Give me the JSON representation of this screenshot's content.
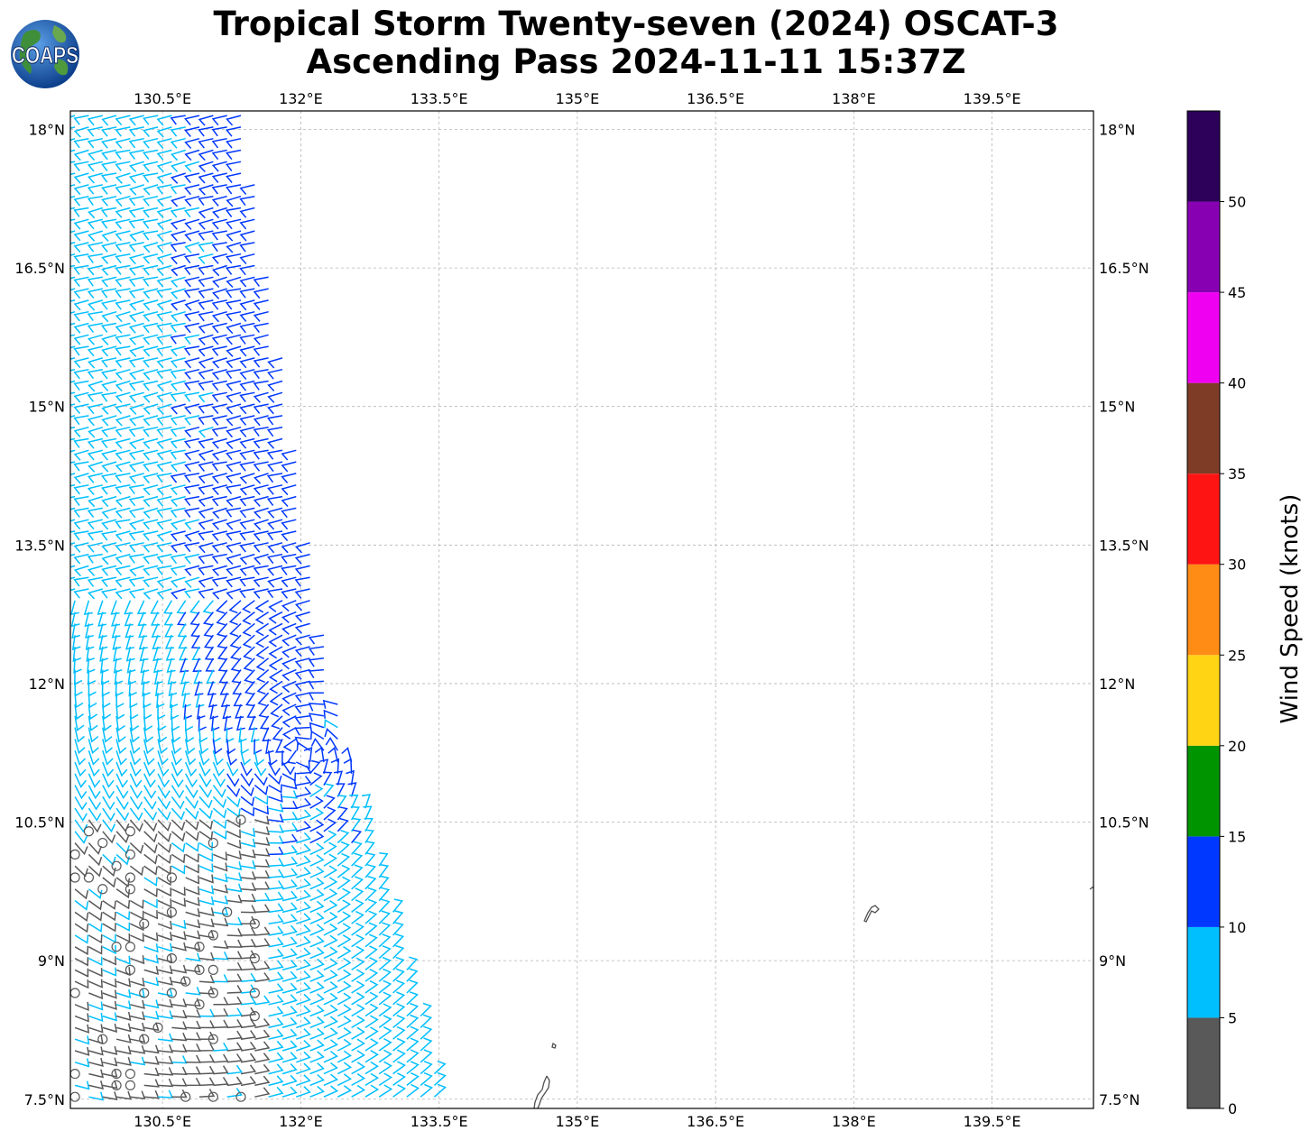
{
  "title": {
    "line1": "Tropical Storm Twenty-seven (2024) OSCAT-3",
    "line2": "Ascending Pass 2024-11-11 15:37Z"
  },
  "logo": {
    "text": "COAPS",
    "icon": "coaps-globe-logo-icon"
  },
  "map": {
    "lon_range": [
      129.5,
      140.6
    ],
    "lat_range": [
      7.4,
      18.2
    ],
    "lon_ticks": [
      {
        "value": 130.5,
        "label": "130.5°E"
      },
      {
        "value": 132,
        "label": "132°E"
      },
      {
        "value": 133.5,
        "label": "133.5°E"
      },
      {
        "value": 135,
        "label": "135°E"
      },
      {
        "value": 136.5,
        "label": "136.5°E"
      },
      {
        "value": 138,
        "label": "138°E"
      },
      {
        "value": 139.5,
        "label": "139.5°E"
      }
    ],
    "lat_ticks": [
      {
        "value": 18,
        "label": "18°N"
      },
      {
        "value": 16.5,
        "label": "16.5°N"
      },
      {
        "value": 15,
        "label": "15°N"
      },
      {
        "value": 13.5,
        "label": "13.5°N"
      },
      {
        "value": 12,
        "label": "12°N"
      },
      {
        "value": 10.5,
        "label": "10.5°N"
      },
      {
        "value": 9,
        "label": "9°N"
      },
      {
        "value": 7.5,
        "label": "7.5°N"
      }
    ],
    "grid": true,
    "swath_edge": [
      [
        129.5,
        18.2
      ],
      [
        131.44,
        18.2
      ],
      [
        132.4,
        12.0
      ],
      [
        133.2,
        9.0
      ],
      [
        133.62,
        7.4
      ],
      [
        129.5,
        7.4
      ]
    ],
    "storm_center": [
      132.0,
      11.2
    ],
    "colors": {
      "grid": "#b4b4b4",
      "coast": "#505050"
    }
  },
  "colorbar": {
    "label": "Wind Speed (knots)",
    "min": 0,
    "max": 55,
    "ticks": [
      {
        "value": 0,
        "label": "0"
      },
      {
        "value": 5,
        "label": "5"
      },
      {
        "value": 10,
        "label": "10"
      },
      {
        "value": 15,
        "label": "15"
      },
      {
        "value": 20,
        "label": "20"
      },
      {
        "value": 25,
        "label": "25"
      },
      {
        "value": 30,
        "label": "30"
      },
      {
        "value": 35,
        "label": "35"
      },
      {
        "value": 40,
        "label": "40"
      },
      {
        "value": 45,
        "label": "45"
      },
      {
        "value": 50,
        "label": "50"
      }
    ],
    "bins": [
      {
        "from": 0,
        "to": 5,
        "color": "#595959"
      },
      {
        "from": 5,
        "to": 10,
        "color": "#00bfff"
      },
      {
        "from": 10,
        "to": 15,
        "color": "#0038ff"
      },
      {
        "from": 15,
        "to": 20,
        "color": "#009400"
      },
      {
        "from": 20,
        "to": 25,
        "color": "#ffd414"
      },
      {
        "from": 25,
        "to": 30,
        "color": "#ff8c14"
      },
      {
        "from": 30,
        "to": 35,
        "color": "#ff1414"
      },
      {
        "from": 35,
        "to": 40,
        "color": "#7e3c26"
      },
      {
        "from": 40,
        "to": 45,
        "color": "#f000f0"
      },
      {
        "from": 45,
        "to": 50,
        "color": "#8700b2"
      },
      {
        "from": 50,
        "to": 55,
        "color": "#2d005a"
      }
    ]
  }
}
